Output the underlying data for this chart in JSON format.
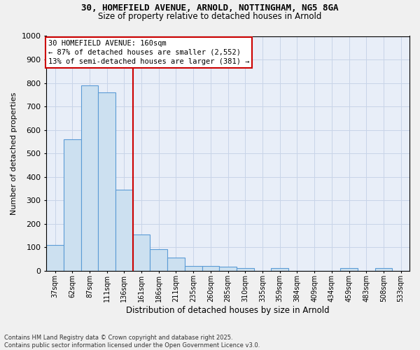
{
  "title1": "30, HOMEFIELD AVENUE, ARNOLD, NOTTINGHAM, NG5 8GA",
  "title2": "Size of property relative to detached houses in Arnold",
  "xlabel": "Distribution of detached houses by size in Arnold",
  "ylabel": "Number of detached properties",
  "categories": [
    "37sqm",
    "62sqm",
    "87sqm",
    "111sqm",
    "136sqm",
    "161sqm",
    "186sqm",
    "211sqm",
    "235sqm",
    "260sqm",
    "285sqm",
    "310sqm",
    "335sqm",
    "359sqm",
    "384sqm",
    "409sqm",
    "434sqm",
    "459sqm",
    "483sqm",
    "508sqm",
    "533sqm"
  ],
  "values": [
    110,
    560,
    790,
    760,
    345,
    155,
    90,
    55,
    20,
    20,
    15,
    10,
    0,
    10,
    0,
    0,
    0,
    10,
    0,
    10,
    0
  ],
  "bar_color": "#cce0f0",
  "bar_edge_color": "#5b9bd5",
  "annotation_line1": "30 HOMEFIELD AVENUE: 160sqm",
  "annotation_line2": "← 87% of detached houses are smaller (2,552)",
  "annotation_line3": "13% of semi-detached houses are larger (381) →",
  "annotation_box_edge_color": "#cc0000",
  "vline_color": "#cc0000",
  "vline_position": 4.5,
  "ylim": [
    0,
    1000
  ],
  "yticks": [
    0,
    100,
    200,
    300,
    400,
    500,
    600,
    700,
    800,
    900,
    1000
  ],
  "grid_color": "#c8d4e8",
  "bg_color": "#e8eef8",
  "fig_bg_color": "#f0f0f0",
  "footer1": "Contains HM Land Registry data © Crown copyright and database right 2025.",
  "footer2": "Contains public sector information licensed under the Open Government Licence v3.0."
}
